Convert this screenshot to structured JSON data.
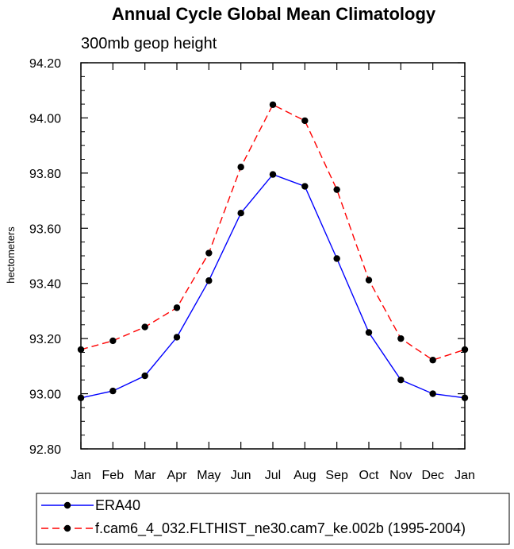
{
  "chart_data": {
    "type": "line",
    "title": "Annual Cycle Global Mean Climatology",
    "subtitle": "300mb geop height",
    "xlabel": "",
    "ylabel": "hectometers",
    "categories": [
      "Jan",
      "Feb",
      "Mar",
      "Apr",
      "May",
      "Jun",
      "Jul",
      "Aug",
      "Sep",
      "Oct",
      "Nov",
      "Dec",
      "Jan"
    ],
    "ylim": [
      92.8,
      94.2
    ],
    "yticks": [
      "92.80",
      "93.00",
      "93.20",
      "93.40",
      "93.60",
      "93.80",
      "94.00",
      "94.20"
    ],
    "grid": false,
    "legend_position": "bottom",
    "series": [
      {
        "name": "ERA40",
        "color": "#0000ff",
        "dash": "solid",
        "marker": "filled-circle",
        "values": [
          92.985,
          93.01,
          93.065,
          93.205,
          93.41,
          93.655,
          93.795,
          93.752,
          93.49,
          93.222,
          93.05,
          93.0,
          92.985
        ]
      },
      {
        "name": "f.cam6_4_032.FLTHIST_ne30.cam7_ke.002b (1995-2004)",
        "color": "#ff0000",
        "dash": "dashed",
        "marker": "filled-circle",
        "values": [
          93.16,
          93.192,
          93.242,
          93.312,
          93.51,
          93.822,
          94.048,
          93.99,
          93.74,
          93.412,
          93.2,
          93.122,
          93.16
        ]
      }
    ]
  }
}
